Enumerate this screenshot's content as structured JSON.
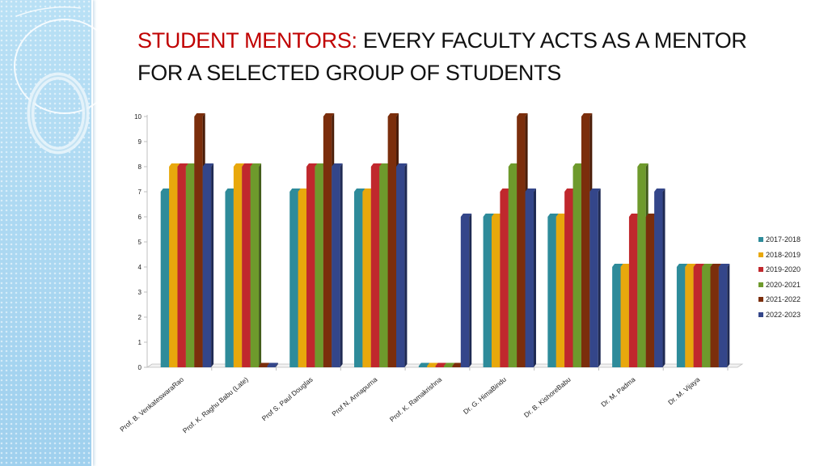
{
  "slide": {
    "title_accent": "STUDENT MENTORS:",
    "title_rest": " EVERY FACULTY ACTS AS A MENTOR FOR A SELECTED GROUP OF STUDENTS"
  },
  "chart_data": {
    "type": "bar",
    "title": "",
    "xlabel": "",
    "ylabel": "",
    "ylim": [
      0,
      10
    ],
    "yticks": [
      0,
      1,
      2,
      3,
      4,
      5,
      6,
      7,
      8,
      9,
      10
    ],
    "legend_position": "right",
    "grid": false,
    "categories": [
      "Prof. B. VenkateswaraRao",
      "Prof. K. Raghu Babu (Late)",
      "Prof S. Paul Douglas",
      "Prof N. Annapurna",
      "Prof. K. Ramakrishna",
      "Dr. G. HimaBindu",
      "Dr. B. KishoreBabu",
      "Dr. M. Padma",
      "Dr. M. Vijaya"
    ],
    "series": [
      {
        "name": "2017-2018",
        "color": "#2e8b9a",
        "values": [
          7,
          7,
          7,
          7,
          0,
          6,
          6,
          4,
          4
        ]
      },
      {
        "name": "2018-2019",
        "color": "#e8a80c",
        "values": [
          8,
          8,
          7,
          7,
          0,
          6,
          6,
          4,
          4
        ]
      },
      {
        "name": "2019-2020",
        "color": "#c0282d",
        "values": [
          8,
          8,
          8,
          8,
          0,
          7,
          7,
          6,
          4
        ]
      },
      {
        "name": "2020-2021",
        "color": "#6e9a2c",
        "values": [
          8,
          8,
          8,
          8,
          0,
          8,
          8,
          8,
          4
        ]
      },
      {
        "name": "2021-2022",
        "color": "#7b2e0c",
        "values": [
          10,
          0,
          10,
          10,
          0,
          10,
          10,
          6,
          4
        ]
      },
      {
        "name": "2022-2023",
        "color": "#34468a",
        "values": [
          8,
          0,
          8,
          8,
          6,
          7,
          7,
          7,
          4
        ]
      }
    ]
  }
}
